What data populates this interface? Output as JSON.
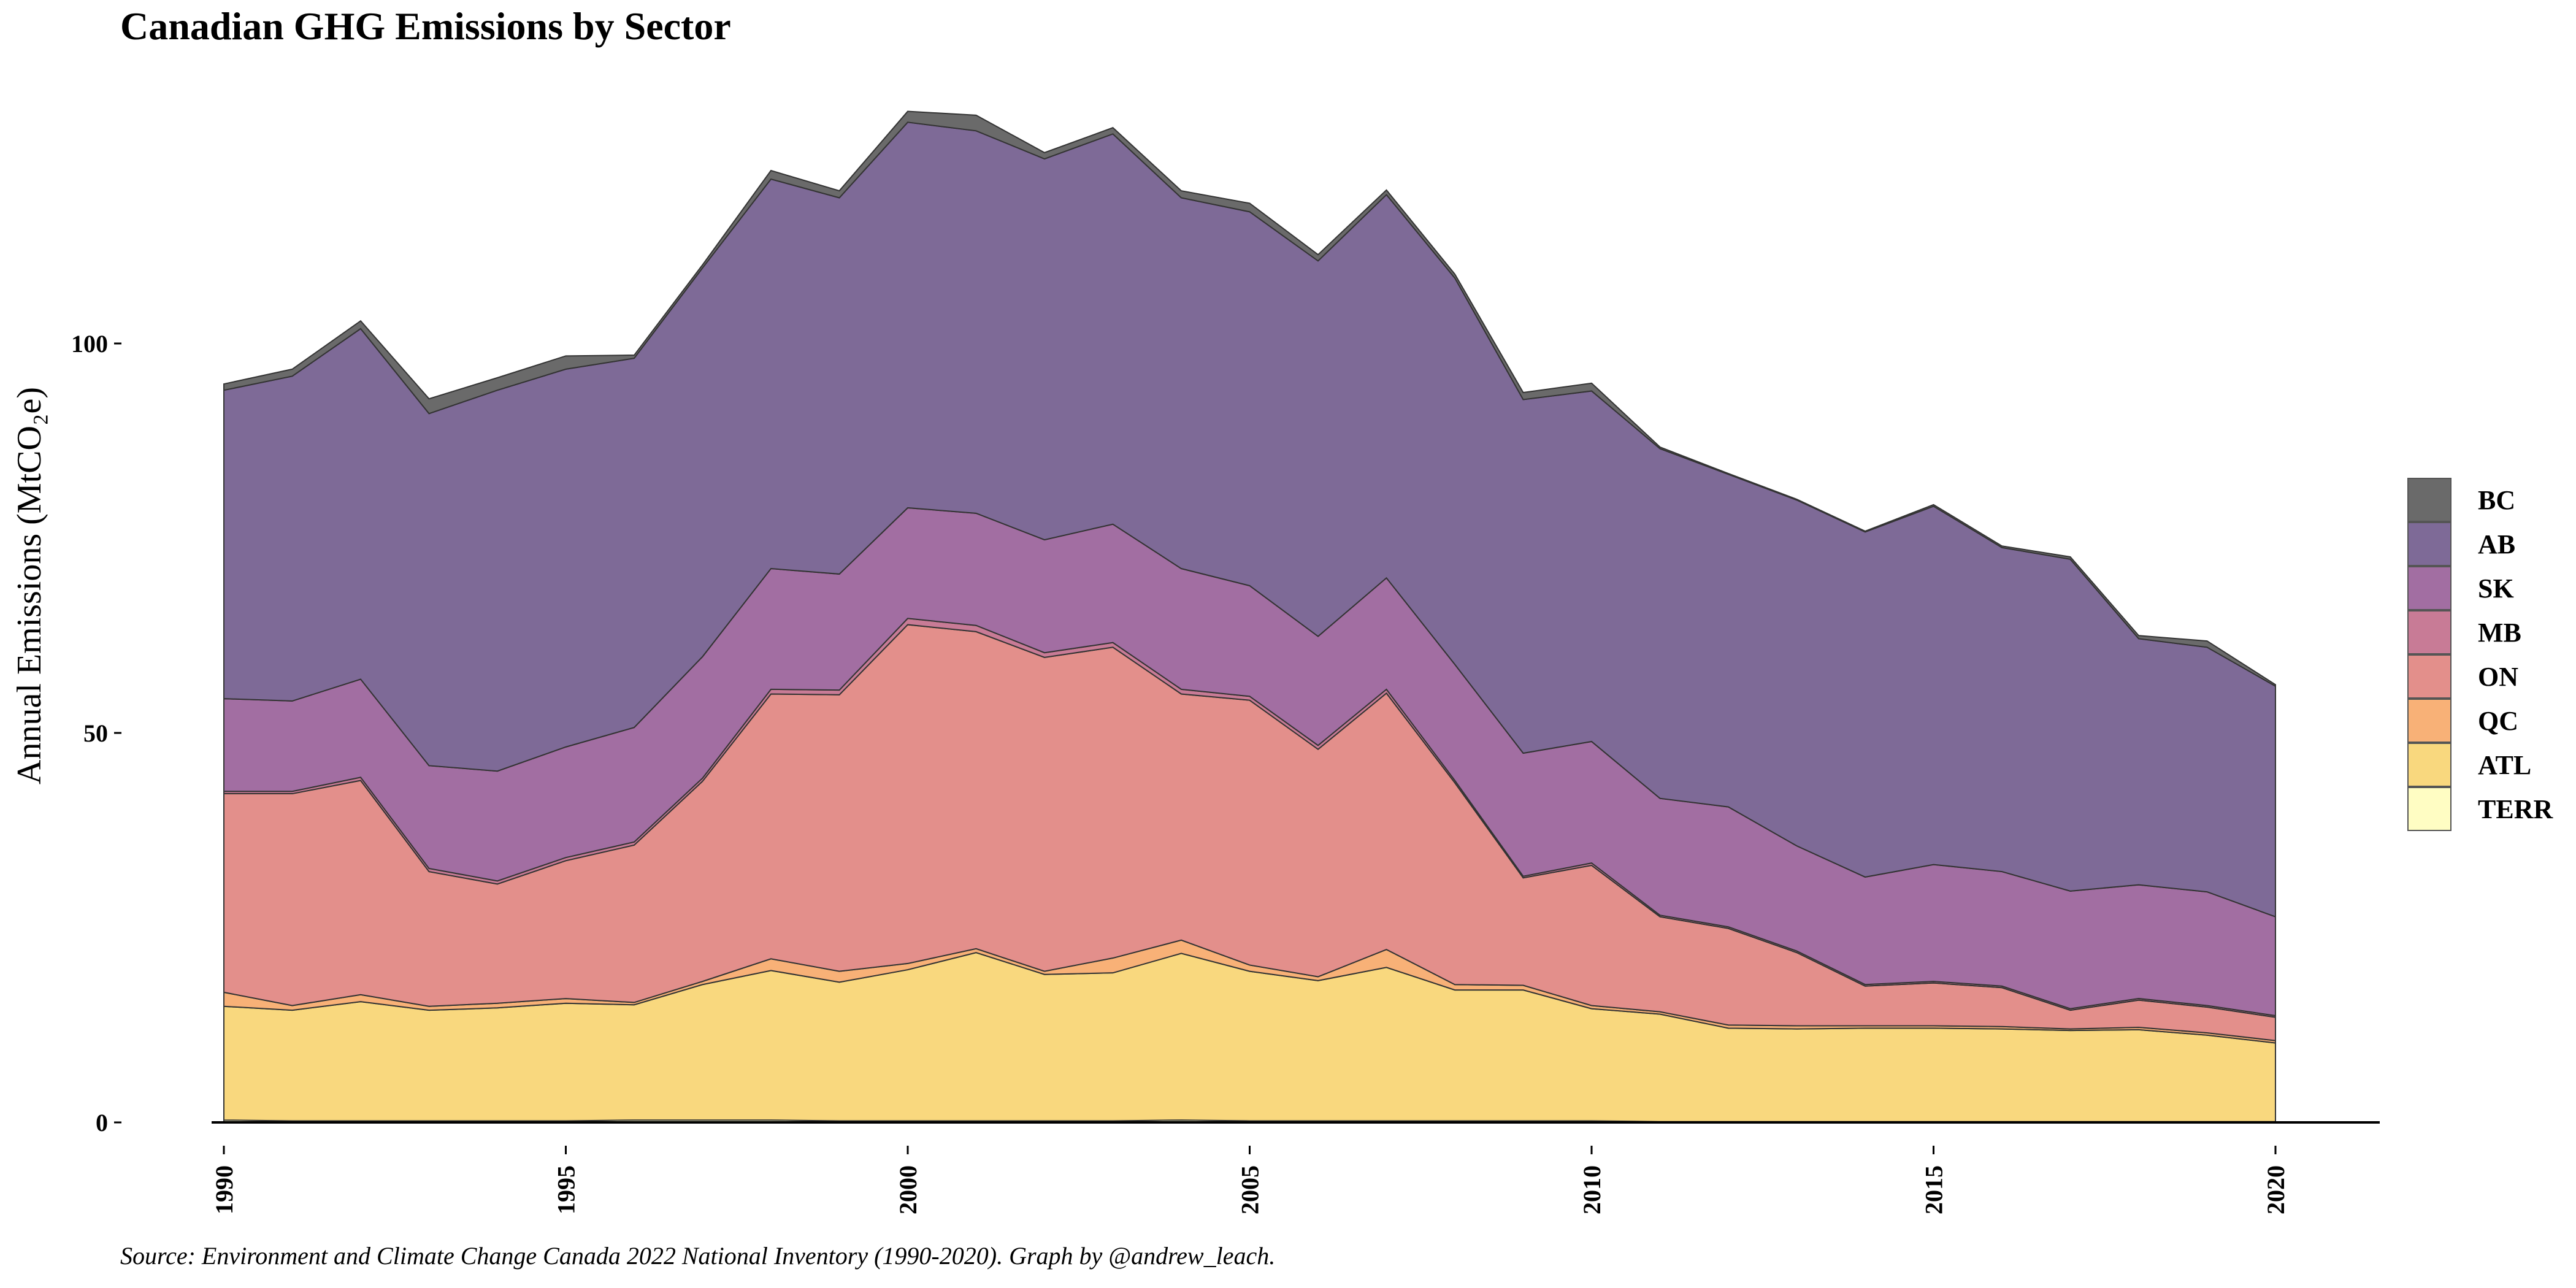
{
  "chart_data": {
    "type": "area",
    "title": "Canadian GHG Emissions by Sector",
    "caption": "Source: Environment and Climate Change Canada 2022 National Inventory (1990-2020). Graph by @andrew_leach.",
    "ylabel": "Annual Emissions (MtCO₂e)",
    "xlabel": "",
    "xlim": [
      1990,
      2020
    ],
    "ylim": [
      0,
      130
    ],
    "x_ticks": [
      1990,
      1995,
      2000,
      2005,
      2010,
      2015,
      2020
    ],
    "y_ticks": [
      0,
      50,
      100
    ],
    "grid": false,
    "legend_position": "right",
    "stacked": true,
    "x": [
      1990,
      1991,
      1992,
      1993,
      1994,
      1995,
      1996,
      1997,
      1998,
      1999,
      2000,
      2001,
      2002,
      2003,
      2004,
      2005,
      2006,
      2007,
      2008,
      2009,
      2010,
      2011,
      2012,
      2013,
      2014,
      2015,
      2016,
      2017,
      2018,
      2019,
      2020
    ],
    "series": [
      {
        "name": "TERR",
        "color": "#FFFDC3",
        "values": [
          0.3,
          0.2,
          0.2,
          0.2,
          0.2,
          0.2,
          0.3,
          0.3,
          0.3,
          0.2,
          0.2,
          0.2,
          0.2,
          0.2,
          0.3,
          0.2,
          0.2,
          0.2,
          0.2,
          0.2,
          0.2,
          0.1,
          0.1,
          0.1,
          0.1,
          0.1,
          0.1,
          0.1,
          0.1,
          0.1,
          0.1
        ]
      },
      {
        "name": "ATL",
        "color": "#F9D87E",
        "values": [
          14.6,
          14.2,
          15.3,
          14.2,
          14.5,
          15.1,
          14.8,
          17.4,
          19.2,
          17.8,
          19.4,
          21.6,
          18.8,
          19.0,
          21.4,
          19.2,
          18.0,
          19.7,
          16.8,
          16.8,
          14.4,
          13.8,
          12.0,
          11.9,
          12.0,
          12.0,
          11.9,
          11.7,
          11.8,
          11.1,
          10.1
        ]
      },
      {
        "name": "QC",
        "color": "#F8B177",
        "values": [
          1.8,
          0.6,
          0.9,
          0.5,
          0.6,
          0.6,
          0.3,
          0.4,
          1.5,
          1.4,
          0.8,
          0.5,
          0.4,
          1.9,
          1.7,
          0.8,
          0.5,
          2.3,
          0.7,
          0.6,
          0.4,
          0.3,
          0.4,
          0.4,
          0.3,
          0.3,
          0.3,
          0.2,
          0.3,
          0.3,
          0.3
        ]
      },
      {
        "name": "ON",
        "color": "#E38F8B",
        "values": [
          25.5,
          27.2,
          27.5,
          17.3,
          15.3,
          17.7,
          20.2,
          25.7,
          34.0,
          35.5,
          43.5,
          40.7,
          40.3,
          39.9,
          31.6,
          34.0,
          29.2,
          32.9,
          25.9,
          13.8,
          18.0,
          12.2,
          12.4,
          9.4,
          5.1,
          5.5,
          5.0,
          2.4,
          3.5,
          3.3,
          3.0
        ]
      },
      {
        "name": "MB",
        "color": "#C87B96",
        "values": [
          0.3,
          0.3,
          0.4,
          0.4,
          0.4,
          0.4,
          0.4,
          0.4,
          0.6,
          0.6,
          0.8,
          0.8,
          0.6,
          0.6,
          0.6,
          0.5,
          0.5,
          0.5,
          0.3,
          0.2,
          0.3,
          0.2,
          0.2,
          0.2,
          0.2,
          0.2,
          0.2,
          0.2,
          0.2,
          0.2,
          0.2
        ]
      },
      {
        "name": "SK",
        "color": "#A26EA2",
        "values": [
          11.9,
          11.6,
          12.6,
          13.2,
          14.1,
          14.2,
          14.7,
          15.6,
          15.5,
          14.9,
          14.2,
          14.4,
          14.5,
          15.2,
          15.5,
          14.2,
          14.0,
          14.3,
          14.9,
          15.8,
          15.6,
          15.0,
          15.4,
          13.5,
          13.8,
          15.0,
          14.7,
          15.1,
          14.6,
          14.6,
          12.7
        ]
      },
      {
        "name": "AB",
        "color": "#7E6A97",
        "values": [
          39.6,
          41.7,
          45.0,
          45.2,
          48.9,
          48.5,
          47.4,
          49.9,
          50.0,
          48.3,
          49.5,
          49.1,
          48.9,
          50.1,
          47.6,
          48.0,
          48.2,
          49.2,
          49.6,
          45.4,
          45.0,
          44.9,
          42.7,
          44.4,
          44.3,
          46.0,
          41.6,
          42.6,
          31.6,
          31.4,
          29.6
        ]
      },
      {
        "name": "BC",
        "color": "#6A6A6A",
        "values": [
          0.8,
          0.9,
          1.0,
          1.9,
          1.6,
          1.7,
          0.4,
          0.4,
          1.1,
          0.9,
          1.4,
          2.0,
          0.8,
          0.8,
          0.9,
          1.1,
          0.8,
          0.6,
          0.5,
          0.9,
          1.0,
          0.2,
          0.1,
          0.1,
          0.1,
          0.2,
          0.2,
          0.3,
          0.4,
          0.8,
          0.2
        ]
      }
    ]
  }
}
